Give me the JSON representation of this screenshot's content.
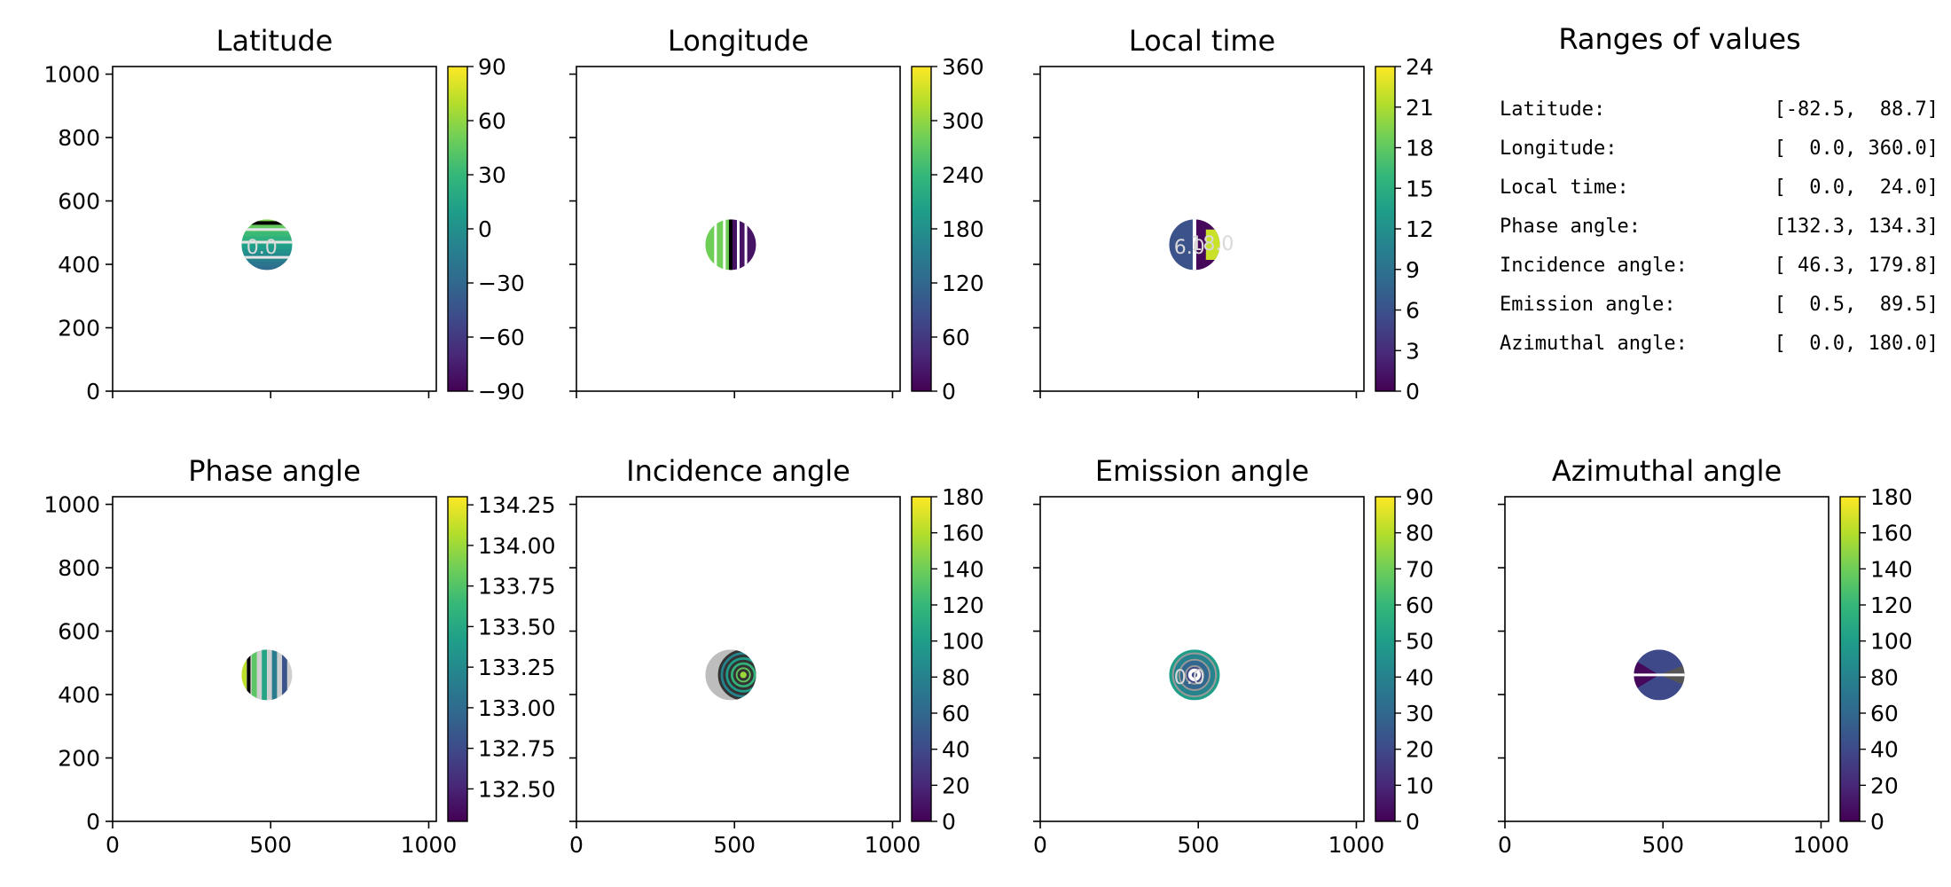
{
  "colormap": [
    "#440154",
    "#482878",
    "#3e4a89",
    "#31688e",
    "#26828e",
    "#1f9e89",
    "#35b779",
    "#6ece58",
    "#b5de2b",
    "#fde725"
  ],
  "ranges_panel": {
    "title": "Ranges of values",
    "rows": [
      {
        "label": "Latitude:",
        "value": "[-82.5,  88.7]"
      },
      {
        "label": "Longitude:",
        "value": "[  0.0, 360.0]"
      },
      {
        "label": "Local time:",
        "value": "[  0.0,  24.0]"
      },
      {
        "label": "Phase angle:",
        "value": "[132.3, 134.3]"
      },
      {
        "label": "Incidence angle:",
        "value": "[ 46.3, 179.8]"
      },
      {
        "label": "Emission angle:",
        "value": "[  0.5,  89.5]"
      },
      {
        "label": "Azimuthal angle:",
        "value": "[  0.0, 180.0]"
      }
    ]
  },
  "chart_data": [
    {
      "type": "heatmap",
      "title": "Latitude",
      "x_ticks": [
        "0",
        "500",
        "1000"
      ],
      "y_ticks": [
        "0",
        "200",
        "400",
        "600",
        "800",
        "1000"
      ],
      "xlim": [
        0,
        1024
      ],
      "ylim": [
        0,
        1024
      ],
      "show_x_ticklabels": false,
      "show_y_ticklabels": true,
      "colorbar": {
        "min": -90,
        "max": 90,
        "ticks": [
          -90,
          -60,
          -30,
          0,
          30,
          60,
          90
        ],
        "tick_labels": [
          "−90",
          "−60",
          "−30",
          "0",
          "30",
          "60",
          "90"
        ]
      },
      "disc": {
        "center": [
          488,
          462
        ],
        "radius": 80
      },
      "contour_labels": [
        "0.0"
      ],
      "pattern": "lat"
    },
    {
      "type": "heatmap",
      "title": "Longitude",
      "x_ticks": [
        "0",
        "500",
        "1000"
      ],
      "y_ticks": [
        "0",
        "200",
        "400",
        "600",
        "800",
        "1000"
      ],
      "xlim": [
        0,
        1024
      ],
      "ylim": [
        0,
        1024
      ],
      "show_x_ticklabels": false,
      "show_y_ticklabels": false,
      "colorbar": {
        "min": 0,
        "max": 360,
        "ticks": [
          0,
          60,
          120,
          180,
          240,
          300,
          360
        ],
        "tick_labels": [
          "0",
          "60",
          "120",
          "180",
          "240",
          "300",
          "360"
        ]
      },
      "disc": {
        "center": [
          488,
          462
        ],
        "radius": 80
      },
      "contour_labels": [],
      "pattern": "lon"
    },
    {
      "type": "heatmap",
      "title": "Local time",
      "x_ticks": [
        "0",
        "500",
        "1000"
      ],
      "y_ticks": [
        "0",
        "200",
        "400",
        "600",
        "800",
        "1000"
      ],
      "xlim": [
        0,
        1024
      ],
      "ylim": [
        0,
        1024
      ],
      "show_x_ticklabels": false,
      "show_y_ticklabels": false,
      "colorbar": {
        "min": 0,
        "max": 24,
        "ticks": [
          0,
          3,
          6,
          9,
          12,
          15,
          18,
          21,
          24
        ],
        "tick_labels": [
          "0",
          "3",
          "6",
          "9",
          "12",
          "15",
          "18",
          "21",
          "24"
        ]
      },
      "disc": {
        "center": [
          488,
          462
        ],
        "radius": 80
      },
      "contour_labels": [
        "6.0",
        "18.0"
      ],
      "pattern": "lt"
    },
    {
      "type": "heatmap",
      "title": "Phase angle",
      "x_ticks": [
        "0",
        "500",
        "1000"
      ],
      "y_ticks": [
        "0",
        "200",
        "400",
        "600",
        "800",
        "1000"
      ],
      "xlim": [
        0,
        1024
      ],
      "ylim": [
        0,
        1024
      ],
      "show_x_ticklabels": true,
      "show_y_ticklabels": true,
      "colorbar": {
        "min": 132.3,
        "max": 134.3,
        "ticks": [
          132.5,
          132.75,
          133.0,
          133.25,
          133.5,
          133.75,
          134.0,
          134.25
        ],
        "tick_labels": [
          "132.50",
          "132.75",
          "133.00",
          "133.25",
          "133.50",
          "133.75",
          "134.00",
          "134.25"
        ]
      },
      "disc": {
        "center": [
          488,
          462
        ],
        "radius": 80
      },
      "contour_labels": [],
      "pattern": "phase"
    },
    {
      "type": "heatmap",
      "title": "Incidence angle",
      "x_ticks": [
        "0",
        "500",
        "1000"
      ],
      "y_ticks": [
        "0",
        "200",
        "400",
        "600",
        "800",
        "1000"
      ],
      "xlim": [
        0,
        1024
      ],
      "ylim": [
        0,
        1024
      ],
      "show_x_ticklabels": true,
      "show_y_ticklabels": false,
      "colorbar": {
        "min": 0,
        "max": 180,
        "ticks": [
          0,
          20,
          40,
          60,
          80,
          100,
          120,
          140,
          160,
          180
        ],
        "tick_labels": [
          "0",
          "20",
          "40",
          "60",
          "80",
          "100",
          "120",
          "140",
          "160",
          "180"
        ]
      },
      "disc": {
        "center": [
          488,
          462
        ],
        "radius": 80
      },
      "contour_labels": [],
      "pattern": "inc"
    },
    {
      "type": "heatmap",
      "title": "Emission angle",
      "x_ticks": [
        "0",
        "500",
        "1000"
      ],
      "y_ticks": [
        "0",
        "200",
        "400",
        "600",
        "800",
        "1000"
      ],
      "xlim": [
        0,
        1024
      ],
      "ylim": [
        0,
        1024
      ],
      "show_x_ticklabels": true,
      "show_y_ticklabels": false,
      "colorbar": {
        "min": 0,
        "max": 90,
        "ticks": [
          0,
          10,
          20,
          30,
          40,
          50,
          60,
          70,
          80,
          90
        ],
        "tick_labels": [
          "0",
          "10",
          "20",
          "30",
          "40",
          "50",
          "60",
          "70",
          "80",
          "90"
        ]
      },
      "disc": {
        "center": [
          488,
          462
        ],
        "radius": 80
      },
      "contour_labels": [
        "0.0"
      ],
      "pattern": "emi"
    },
    {
      "type": "heatmap",
      "title": "Azimuthal angle",
      "x_ticks": [
        "0",
        "500",
        "1000"
      ],
      "y_ticks": [
        "0",
        "200",
        "400",
        "600",
        "800",
        "1000"
      ],
      "xlim": [
        0,
        1024
      ],
      "ylim": [
        0,
        1024
      ],
      "show_x_ticklabels": true,
      "show_y_ticklabels": false,
      "colorbar": {
        "min": 0,
        "max": 180,
        "ticks": [
          0,
          20,
          40,
          60,
          80,
          100,
          120,
          140,
          160,
          180
        ],
        "tick_labels": [
          "0",
          "20",
          "40",
          "60",
          "80",
          "100",
          "120",
          "140",
          "160",
          "180"
        ]
      },
      "disc": {
        "center": [
          488,
          462
        ],
        "radius": 80
      },
      "contour_labels": [],
      "pattern": "azi"
    }
  ]
}
